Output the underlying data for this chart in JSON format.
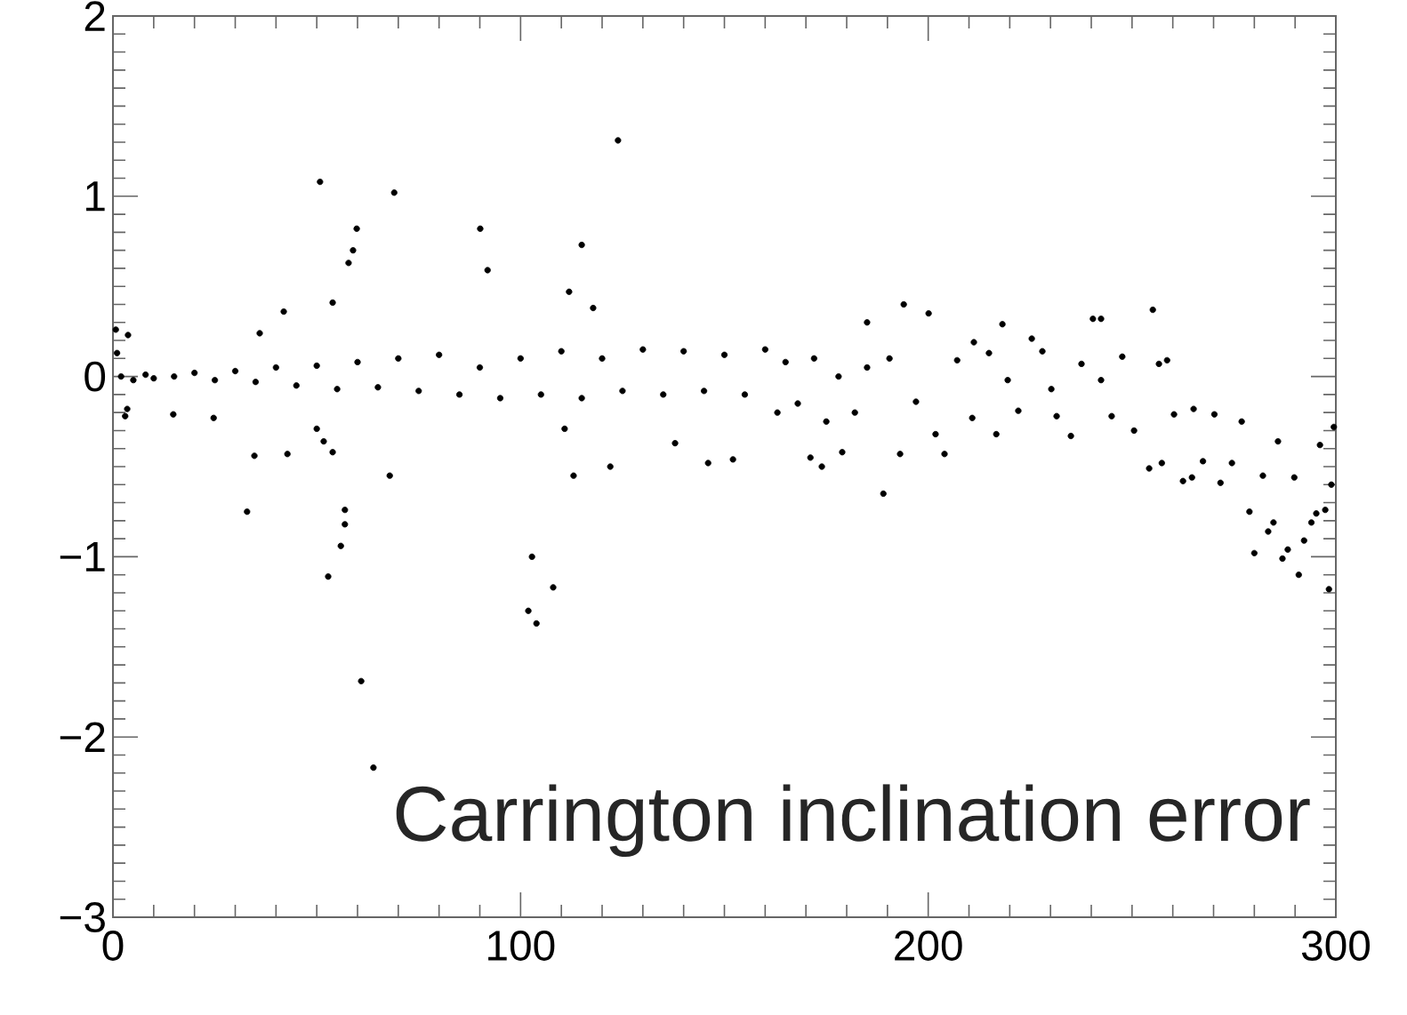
{
  "chart_data": {
    "type": "scatter",
    "color": "#000000",
    "marker": "circle",
    "grid": false,
    "xlim": [
      0,
      300
    ],
    "ylim": [
      -3,
      2
    ],
    "xticks": [
      0,
      100,
      200,
      300
    ],
    "yticks": [
      {
        "value": -3,
        "label": "−3"
      },
      {
        "value": -2,
        "label": "−2"
      },
      {
        "value": -1,
        "label": "−1"
      },
      0,
      1,
      2
    ],
    "annotations": [
      "Carrington inclination error"
    ],
    "x": [
      50.8,
      69.0,
      123.9,
      90.1,
      91.9,
      59.8,
      58.9,
      57.8,
      115.0,
      111.9,
      53.9,
      41.9,
      36.0,
      194.0,
      200.1,
      218.2,
      240.4,
      242.4,
      255.1,
      185.0,
      117.8,
      0.7,
      3.7,
      32.9,
      34.7,
      42.8,
      14.8,
      24.7,
      50.0,
      51.7,
      53.9,
      52.8,
      55.9,
      56.9,
      56.9,
      60.9,
      63.9,
      67.9,
      102.8,
      101.9,
      103.9,
      108.0,
      110.8,
      113.0,
      122.0,
      137.9,
      146.0,
      152.1,
      171.1,
      173.9,
      178.9,
      189.0,
      193.1,
      204.0,
      201.8,
      210.8,
      216.7,
      222.1,
      231.5,
      235.0,
      245.0,
      250.5,
      254.2,
      257.3,
      260.3,
      262.5,
      264.7,
      267.4,
      265.1,
      270.2,
      271.7,
      274.5,
      276.9,
      278.8,
      280.0,
      282.1,
      283.4,
      284.7,
      285.8,
      286.9,
      288.2,
      289.8,
      290.9,
      292.2,
      294.0,
      295.2,
      296.1,
      297.4,
      298.3,
      298.9,
      299.5,
      211.2,
      214.9,
      225.4,
      228.0,
      237.6,
      247.6,
      256.6,
      258.6,
      230.2,
      207.1,
      219.5,
      190.5,
      197.0,
      242.4,
      1,
      2,
      5,
      8,
      10,
      15,
      20,
      25,
      30,
      35,
      40,
      45,
      50,
      55,
      60,
      65,
      70,
      75,
      80,
      85,
      90,
      95,
      100,
      105,
      110,
      115,
      120,
      125,
      130,
      135,
      140,
      145,
      150,
      155,
      160,
      163,
      165,
      168,
      172,
      175,
      178,
      182,
      185,
      3,
      3.5
    ],
    "values": [
      1.08,
      1.02,
      1.31,
      0.82,
      0.59,
      0.82,
      0.7,
      0.63,
      0.73,
      0.47,
      0.41,
      0.36,
      0.24,
      0.4,
      0.35,
      0.29,
      0.32,
      0.32,
      0.37,
      0.3,
      0.38,
      0.26,
      0.23,
      -0.75,
      -0.44,
      -0.43,
      -0.21,
      -0.23,
      -0.29,
      -0.36,
      -0.42,
      -1.11,
      -0.94,
      -0.82,
      -0.74,
      -1.69,
      -2.17,
      -0.55,
      -1.0,
      -1.3,
      -1.37,
      -1.17,
      -0.29,
      -0.55,
      -0.5,
      -0.37,
      -0.48,
      -0.46,
      -0.45,
      -0.5,
      -0.42,
      -0.65,
      -0.43,
      -0.43,
      -0.32,
      -0.23,
      -0.32,
      -0.19,
      -0.22,
      -0.33,
      -0.22,
      -0.3,
      -0.51,
      -0.48,
      -0.21,
      -0.58,
      -0.56,
      -0.47,
      -0.18,
      -0.21,
      -0.59,
      -0.48,
      -0.25,
      -0.75,
      -0.98,
      -0.55,
      -0.86,
      -0.81,
      -0.36,
      -1.01,
      -0.96,
      -0.56,
      -1.1,
      -0.91,
      -0.81,
      -0.76,
      -0.38,
      -0.74,
      -1.18,
      -0.6,
      -0.28,
      0.19,
      0.13,
      0.21,
      0.14,
      0.07,
      0.11,
      0.07,
      0.09,
      -0.07,
      0.09,
      -0.02,
      0.1,
      -0.14,
      -0.02,
      0.13,
      0.0,
      -0.02,
      0.01,
      -0.01,
      0.0,
      0.02,
      -0.02,
      0.03,
      -0.03,
      0.05,
      -0.05,
      0.06,
      -0.07,
      0.08,
      -0.06,
      0.1,
      -0.08,
      0.12,
      -0.1,
      0.05,
      -0.12,
      0.1,
      -0.1,
      0.14,
      -0.12,
      0.1,
      -0.08,
      0.15,
      -0.1,
      0.14,
      -0.08,
      0.12,
      -0.1,
      0.15,
      -0.2,
      0.08,
      -0.15,
      0.1,
      -0.25,
      0.0,
      -0.2,
      0.05,
      -0.22,
      -0.18
    ]
  }
}
